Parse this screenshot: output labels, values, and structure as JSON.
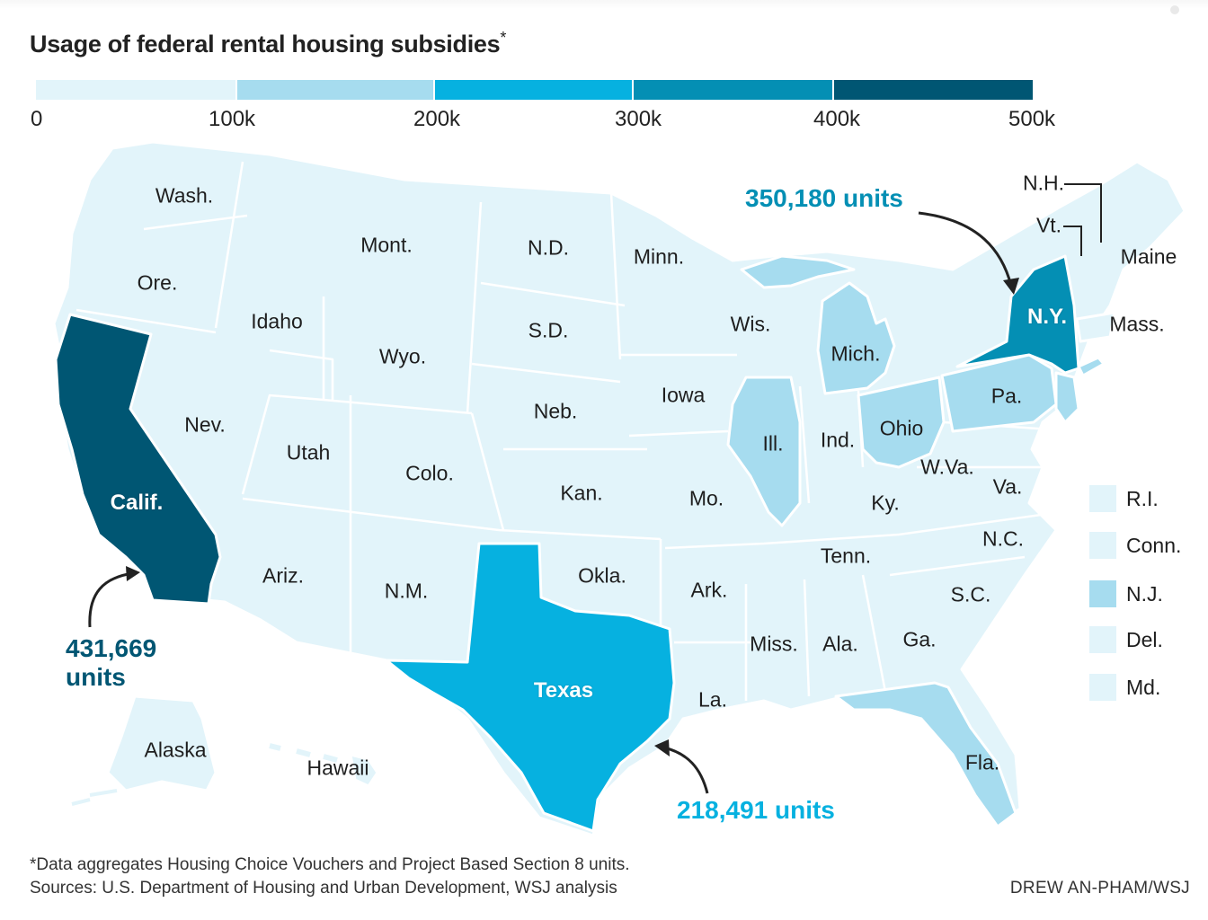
{
  "title": "Usage of federal rental housing subsidies",
  "title_marker": "*",
  "scale": {
    "ticks": [
      "0",
      "100k",
      "200k",
      "300k",
      "400k",
      "500k"
    ],
    "colors": [
      "#e2f4fa",
      "#a6dcef",
      "#06b1e0",
      "#048fb4",
      "#005673"
    ]
  },
  "states": {
    "wa": "Wash.",
    "or": "Ore.",
    "ca": "Calif.",
    "nv": "Nev.",
    "id": "Idaho",
    "mt": "Mont.",
    "wy": "Wyo.",
    "ut": "Utah",
    "az": "Ariz.",
    "co": "Colo.",
    "nm": "N.M.",
    "nd": "N.D.",
    "sd": "S.D.",
    "ne": "Neb.",
    "ks": "Kan.",
    "ok": "Okla.",
    "tx": "Texas",
    "mn": "Minn.",
    "ia": "Iowa",
    "mo": "Mo.",
    "ar": "Ark.",
    "la": "La.",
    "wi": "Wis.",
    "il": "Ill.",
    "mi": "Mich.",
    "in": "Ind.",
    "oh": "Ohio",
    "ky": "Ky.",
    "tn": "Tenn.",
    "ms": "Miss.",
    "al": "Ala.",
    "ga": "Ga.",
    "fl": "Fla.",
    "sc": "S.C.",
    "nc": "N.C.",
    "va": "Va.",
    "wv": "W.Va.",
    "pa": "Pa.",
    "ny": "N.Y.",
    "vt": "Vt.",
    "nh": "N.H.",
    "me": "Maine",
    "ma": "Mass.",
    "ak": "Alaska",
    "hi": "Hawaii"
  },
  "callouts": {
    "ny": "350,180 units",
    "ca_line1": "431,669",
    "ca_line2": "units",
    "tx": "218,491 units"
  },
  "legend_small_states": [
    {
      "label": "R.I.",
      "color": "#e2f4fa"
    },
    {
      "label": "Conn.",
      "color": "#e2f4fa"
    },
    {
      "label": "N.J.",
      "color": "#a6dcef"
    },
    {
      "label": "Del.",
      "color": "#e2f4fa"
    },
    {
      "label": "Md.",
      "color": "#e2f4fa"
    }
  ],
  "footnote": "*Data aggregates Housing Choice Vouchers and Project Based Section 8 units.",
  "sources": "Sources: U.S. Department of Housing and Urban Development, WSJ analysis",
  "credit": "DREW AN-PHAM/WSJ"
}
